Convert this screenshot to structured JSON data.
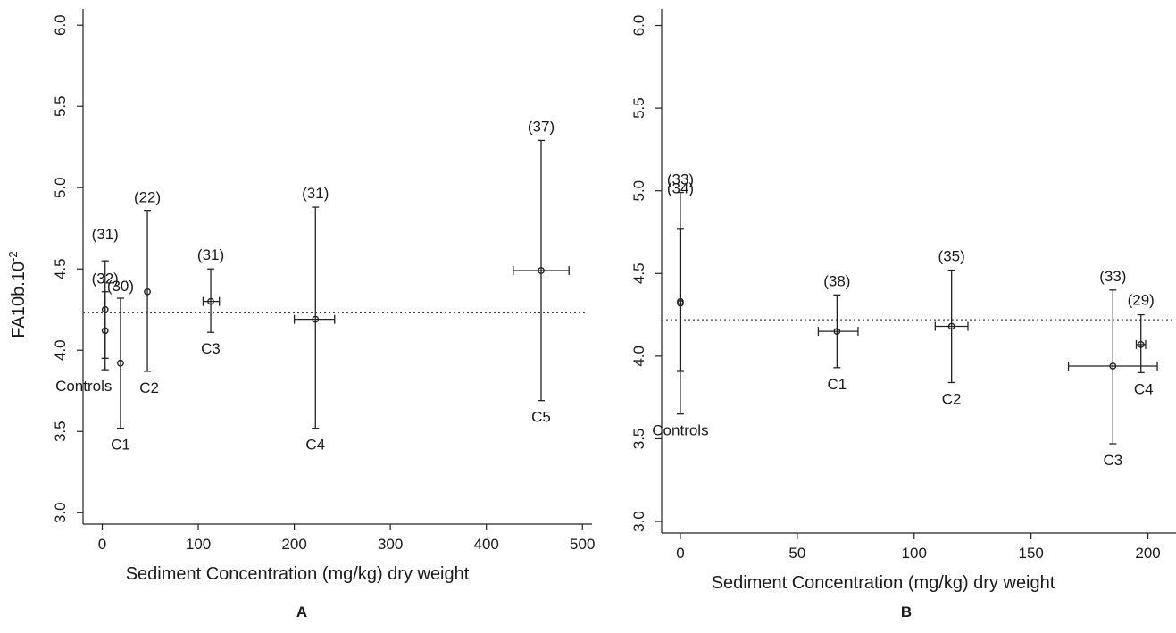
{
  "chart_data": [
    {
      "panel": "A",
      "type": "scatter",
      "xlabel": "Sediment Concentration (mg/kg) dry weight",
      "ylabel": "FA10b.10",
      "ylabel_sup": "-2",
      "xlim": [
        -20,
        510
      ],
      "ylim": [
        2.93,
        6.1
      ],
      "xticks": [
        0,
        100,
        200,
        300,
        400,
        500
      ],
      "yticks": [
        3.0,
        3.5,
        4.0,
        4.5,
        5.0,
        5.5,
        6.0
      ],
      "ytick_labels": [
        "3.0",
        "3.5",
        "4.0",
        "4.5",
        "5.0",
        "5.5",
        "6.0"
      ],
      "reference_line": 4.23,
      "points": [
        {
          "label": "",
          "n": "(31)",
          "x": 3,
          "y": 4.25,
          "ylo": 3.95,
          "yhi": 4.55,
          "xlo": null,
          "xhi": null
        },
        {
          "label": "Controls",
          "n": "(32)",
          "x": 3,
          "y": 4.12,
          "ylo": 3.88,
          "yhi": 4.36,
          "xlo": null,
          "xhi": null
        },
        {
          "label": "C1",
          "n": "(30)",
          "x": 19,
          "y": 3.92,
          "ylo": 3.52,
          "yhi": 4.32,
          "xlo": null,
          "xhi": null
        },
        {
          "label": "C2",
          "n": "(22)",
          "x": 47,
          "y": 4.36,
          "ylo": 3.87,
          "yhi": 4.86,
          "xlo": null,
          "xhi": null
        },
        {
          "label": "C3",
          "n": "(31)",
          "x": 113,
          "y": 4.3,
          "ylo": 4.11,
          "yhi": 4.5,
          "xlo": 105,
          "xhi": 122
        },
        {
          "label": "C4",
          "n": "(31)",
          "x": 222,
          "y": 4.19,
          "ylo": 3.52,
          "yhi": 4.88,
          "xlo": 200,
          "xhi": 242
        },
        {
          "label": "C5",
          "n": "(37)",
          "x": 457,
          "y": 4.49,
          "ylo": 3.69,
          "yhi": 5.29,
          "xlo": 428,
          "xhi": 486
        }
      ]
    },
    {
      "panel": "B",
      "type": "scatter",
      "xlabel": "Sediment Concentration (mg/kg) dry weight",
      "xlim": [
        -8,
        212
      ],
      "ylim": [
        2.93,
        6.1
      ],
      "xticks": [
        0,
        50,
        100,
        150,
        200
      ],
      "yticks": [
        3.0,
        3.5,
        4.0,
        4.5,
        5.0,
        5.5,
        6.0
      ],
      "ytick_labels": [
        "3.0",
        "3.5",
        "4.0",
        "4.5",
        "5.0",
        "5.5",
        "6.0"
      ],
      "reference_line": 4.22,
      "points": [
        {
          "label": "",
          "n": "(34)",
          "x": 0,
          "y": 4.33,
          "ylo": 3.91,
          "yhi": 4.77,
          "xlo": null,
          "xhi": null,
          "bold": true
        },
        {
          "label": "Controls",
          "n": "(33)",
          "x": 0,
          "y": 4.32,
          "ylo": 3.65,
          "yhi": 4.99,
          "xlo": null,
          "xhi": null
        },
        {
          "label": "C1",
          "n": "(38)",
          "x": 67,
          "y": 4.15,
          "ylo": 3.93,
          "yhi": 4.37,
          "xlo": 59,
          "xhi": 76
        },
        {
          "label": "C2",
          "n": "(35)",
          "x": 116,
          "y": 4.18,
          "ylo": 3.84,
          "yhi": 4.52,
          "xlo": 109,
          "xhi": 123
        },
        {
          "label": "C3",
          "n": "(33)",
          "x": 185,
          "y": 3.94,
          "ylo": 3.47,
          "yhi": 4.4,
          "xlo": 166,
          "xhi": 204
        },
        {
          "label": "C4",
          "n": "(29)",
          "x": 197,
          "y": 4.07,
          "ylo": 3.9,
          "yhi": 4.25,
          "xlo": 195,
          "xhi": 199
        }
      ]
    }
  ],
  "panel_labels": [
    "A",
    "B"
  ]
}
